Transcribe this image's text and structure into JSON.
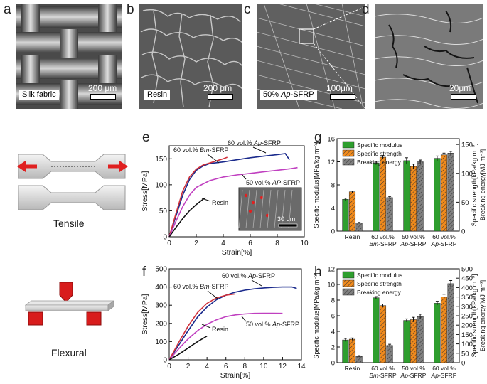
{
  "panels": {
    "a": {
      "label": "a",
      "tag": "Silk fabric",
      "scale": "200 μm"
    },
    "b": {
      "label": "b",
      "tag": "Resin",
      "scale": "200 μm"
    },
    "c": {
      "label": "c",
      "tag_prefix": "50% ",
      "tag_italic": "Ap",
      "tag_suffix": "-SFRP",
      "scale": "100μm"
    },
    "d": {
      "label": "d",
      "scale": "20μm"
    },
    "e": {
      "label": "e"
    },
    "f": {
      "label": "f"
    },
    "g": {
      "label": "g"
    },
    "h": {
      "label": "h"
    }
  },
  "schematics": {
    "tensile": "Tensile",
    "flexural": "Flexural"
  },
  "colors": {
    "green": "#2e9e2e",
    "orange": "#f08a1c",
    "gray": "#808080",
    "blue": "#1a2a8c",
    "red": "#d0303a",
    "magenta": "#c040c0",
    "black": "#111111"
  },
  "chart_data": [
    {
      "id": "e",
      "type": "line",
      "xlabel": "Strain[%]",
      "ylabel": "Stress[MPa]",
      "xlim": [
        0,
        10
      ],
      "ylim": [
        0,
        175
      ],
      "xticks": [
        0,
        2,
        4,
        6,
        8,
        10
      ],
      "yticks": [
        0,
        50,
        100,
        150
      ],
      "inset_scale": "30 μm",
      "series": [
        {
          "name": "60 vol.% Ap-SFRP",
          "prefix": "60 vol.% ",
          "italic": "Ap",
          "suffix": "-SFRP",
          "color": "#1a2a8c",
          "x": [
            0,
            0.5,
            1,
            1.5,
            2,
            2.5,
            3,
            4,
            5,
            6,
            7,
            8,
            8.6,
            8.9
          ],
          "y": [
            0,
            40,
            80,
            110,
            128,
            136,
            141,
            144,
            148,
            152,
            155,
            158,
            160,
            148
          ]
        },
        {
          "name": "60 vol.% Bm-SFRP",
          "prefix": "60 vol.% ",
          "italic": "Bm",
          "suffix": "-SFRP",
          "color": "#d0303a",
          "x": [
            0,
            0.5,
            1,
            1.5,
            2,
            2.5,
            3,
            3.5,
            4,
            4.3
          ],
          "y": [
            0,
            45,
            88,
            115,
            130,
            138,
            142,
            146,
            150,
            153
          ]
        },
        {
          "name": "50 vol.% AP-SFRP",
          "prefix": "50 vol.% ",
          "italic": "AP",
          "suffix": "-SFRP",
          "color": "#c040c0",
          "x": [
            0,
            0.5,
            1,
            1.5,
            2,
            3,
            4,
            5,
            6,
            7,
            8,
            9,
            9.5
          ],
          "y": [
            0,
            30,
            58,
            80,
            95,
            108,
            115,
            119,
            122,
            125,
            128,
            131,
            133
          ]
        },
        {
          "name": "Resin",
          "prefix": "",
          "italic": "",
          "suffix": "Resin",
          "color": "#111111",
          "x": [
            0,
            0.5,
            1,
            1.5,
            2,
            2.5,
            2.7
          ],
          "y": [
            0,
            18,
            35,
            50,
            62,
            72,
            75
          ]
        }
      ]
    },
    {
      "id": "f",
      "type": "line",
      "xlabel": "Strain[%]",
      "ylabel": "Stress[MPa]",
      "xlim": [
        0,
        14
      ],
      "ylim": [
        0,
        500
      ],
      "xticks": [
        0,
        2,
        4,
        6,
        8,
        10,
        12,
        14
      ],
      "yticks": [
        0,
        100,
        200,
        300,
        400,
        500
      ],
      "series": [
        {
          "name": "60 vol.% Ap-SFRP",
          "prefix": "60 vol.% ",
          "italic": "Ap",
          "suffix": "-SFRP",
          "color": "#1a2a8c",
          "x": [
            0,
            1,
            2,
            3,
            4,
            5,
            6,
            7,
            8,
            9,
            10,
            11,
            12,
            13,
            13.5
          ],
          "y": [
            0,
            80,
            160,
            235,
            290,
            330,
            355,
            372,
            383,
            390,
            395,
            398,
            400,
            400,
            392
          ]
        },
        {
          "name": "60 vol.% Bm-SFRP",
          "prefix": "60 vol.% ",
          "italic": "Bm",
          "suffix": "-SFRP",
          "color": "#d0303a",
          "x": [
            0,
            1,
            2,
            3,
            4,
            5,
            6,
            7
          ],
          "y": [
            0,
            95,
            185,
            260,
            310,
            340,
            355,
            362
          ]
        },
        {
          "name": "50 vol.% Ap-SFRP",
          "prefix": "50 vol.% ",
          "italic": "Ap",
          "suffix": "-SFRP",
          "color": "#c040c0",
          "x": [
            0,
            1,
            2,
            3,
            4,
            5,
            6,
            7,
            8,
            9,
            10,
            11,
            12
          ],
          "y": [
            0,
            60,
            115,
            160,
            195,
            220,
            237,
            247,
            252,
            255,
            256,
            256,
            255
          ]
        },
        {
          "name": "Resin",
          "prefix": "",
          "italic": "",
          "suffix": "Resin",
          "color": "#111111",
          "x": [
            0,
            1,
            2,
            3,
            4
          ],
          "y": [
            0,
            30,
            65,
            100,
            130
          ]
        }
      ]
    },
    {
      "id": "g",
      "type": "bar",
      "categories": [
        {
          "l1": "Resin",
          "l2": "",
          "italic": "",
          "suffix": ""
        },
        {
          "l1": "60 vol.%",
          "l2": "",
          "italic": "Bm",
          "suffix": "-SFRP"
        },
        {
          "l1": "50 vol.%",
          "l2": "",
          "italic": "Ap",
          "suffix": "-SFRP"
        },
        {
          "l1": "60 vol.%",
          "l2": "",
          "italic": "Ap",
          "suffix": "-SFRP"
        }
      ],
      "ylabel": "Specific modulus[MPa/kg m⁻³]",
      "y2label": "Specific strength[kPa/kg m⁻³]",
      "y3label": "Breaking energy[MJ m⁻³]",
      "ylim": [
        0,
        16
      ],
      "yticks": [
        0,
        4,
        8,
        12,
        16
      ],
      "y2lim": [
        0,
        160
      ],
      "y2ticks": [
        0,
        50,
        100,
        150
      ],
      "series": [
        {
          "name": "Specific modulus",
          "color": "#2e9e2e",
          "hatch": false,
          "values": [
            5.5,
            11.8,
            12.2,
            12.6
          ],
          "err": [
            0.2,
            0.3,
            0.5,
            0.4
          ]
        },
        {
          "name": "Specific strength",
          "color": "#f08a1c",
          "hatch": true,
          "values": [
            6.8,
            12.8,
            11.2,
            13.2
          ],
          "err": [
            0.15,
            0.3,
            0.4,
            0.3
          ]
        },
        {
          "name": "Breaking energy",
          "color": "#808080",
          "hatch": true,
          "values": [
            1.4,
            5.8,
            12.0,
            13.5
          ],
          "err": [
            0.1,
            0.2,
            0.3,
            0.3
          ]
        }
      ]
    },
    {
      "id": "h",
      "type": "bar",
      "categories": [
        {
          "l1": "Resin",
          "l2": "",
          "italic": "",
          "suffix": ""
        },
        {
          "l1": "60 vol.%",
          "l2": "",
          "italic": "Bm",
          "suffix": "-SFRP"
        },
        {
          "l1": "50 vol.%",
          "l2": "",
          "italic": "Ap",
          "suffix": "-SFRP"
        },
        {
          "l1": "60 vol.%",
          "l2": "",
          "italic": "Ap",
          "suffix": "-SFRP"
        }
      ],
      "ylabel": "Specific modulus[MPa/kg m⁻³]",
      "y2label": "Specific strength[kPa/kg m⁻³]",
      "y3label": "Breaking energy[MJ m⁻³]",
      "ylim": [
        0,
        12
      ],
      "yticks": [
        0,
        2,
        4,
        6,
        8,
        10,
        12
      ],
      "y2lim": [
        0,
        500
      ],
      "y2ticks": [
        0,
        50,
        100,
        150,
        200,
        250,
        300,
        350,
        400,
        450,
        500
      ],
      "series": [
        {
          "name": "Specific modulus",
          "color": "#2e9e2e",
          "hatch": false,
          "values": [
            2.9,
            8.3,
            5.4,
            7.6
          ],
          "err": [
            0.2,
            0.15,
            0.2,
            0.25
          ]
        },
        {
          "name": "Specific strength",
          "color": "#f08a1c",
          "hatch": true,
          "values": [
            3.0,
            7.3,
            5.5,
            8.4
          ],
          "err": [
            0.15,
            0.2,
            0.3,
            0.35
          ]
        },
        {
          "name": "Breaking energy",
          "color": "#808080",
          "hatch": true,
          "values": [
            0.8,
            2.2,
            5.9,
            10.1
          ],
          "err": [
            0.1,
            0.15,
            0.3,
            0.4
          ]
        }
      ]
    }
  ]
}
